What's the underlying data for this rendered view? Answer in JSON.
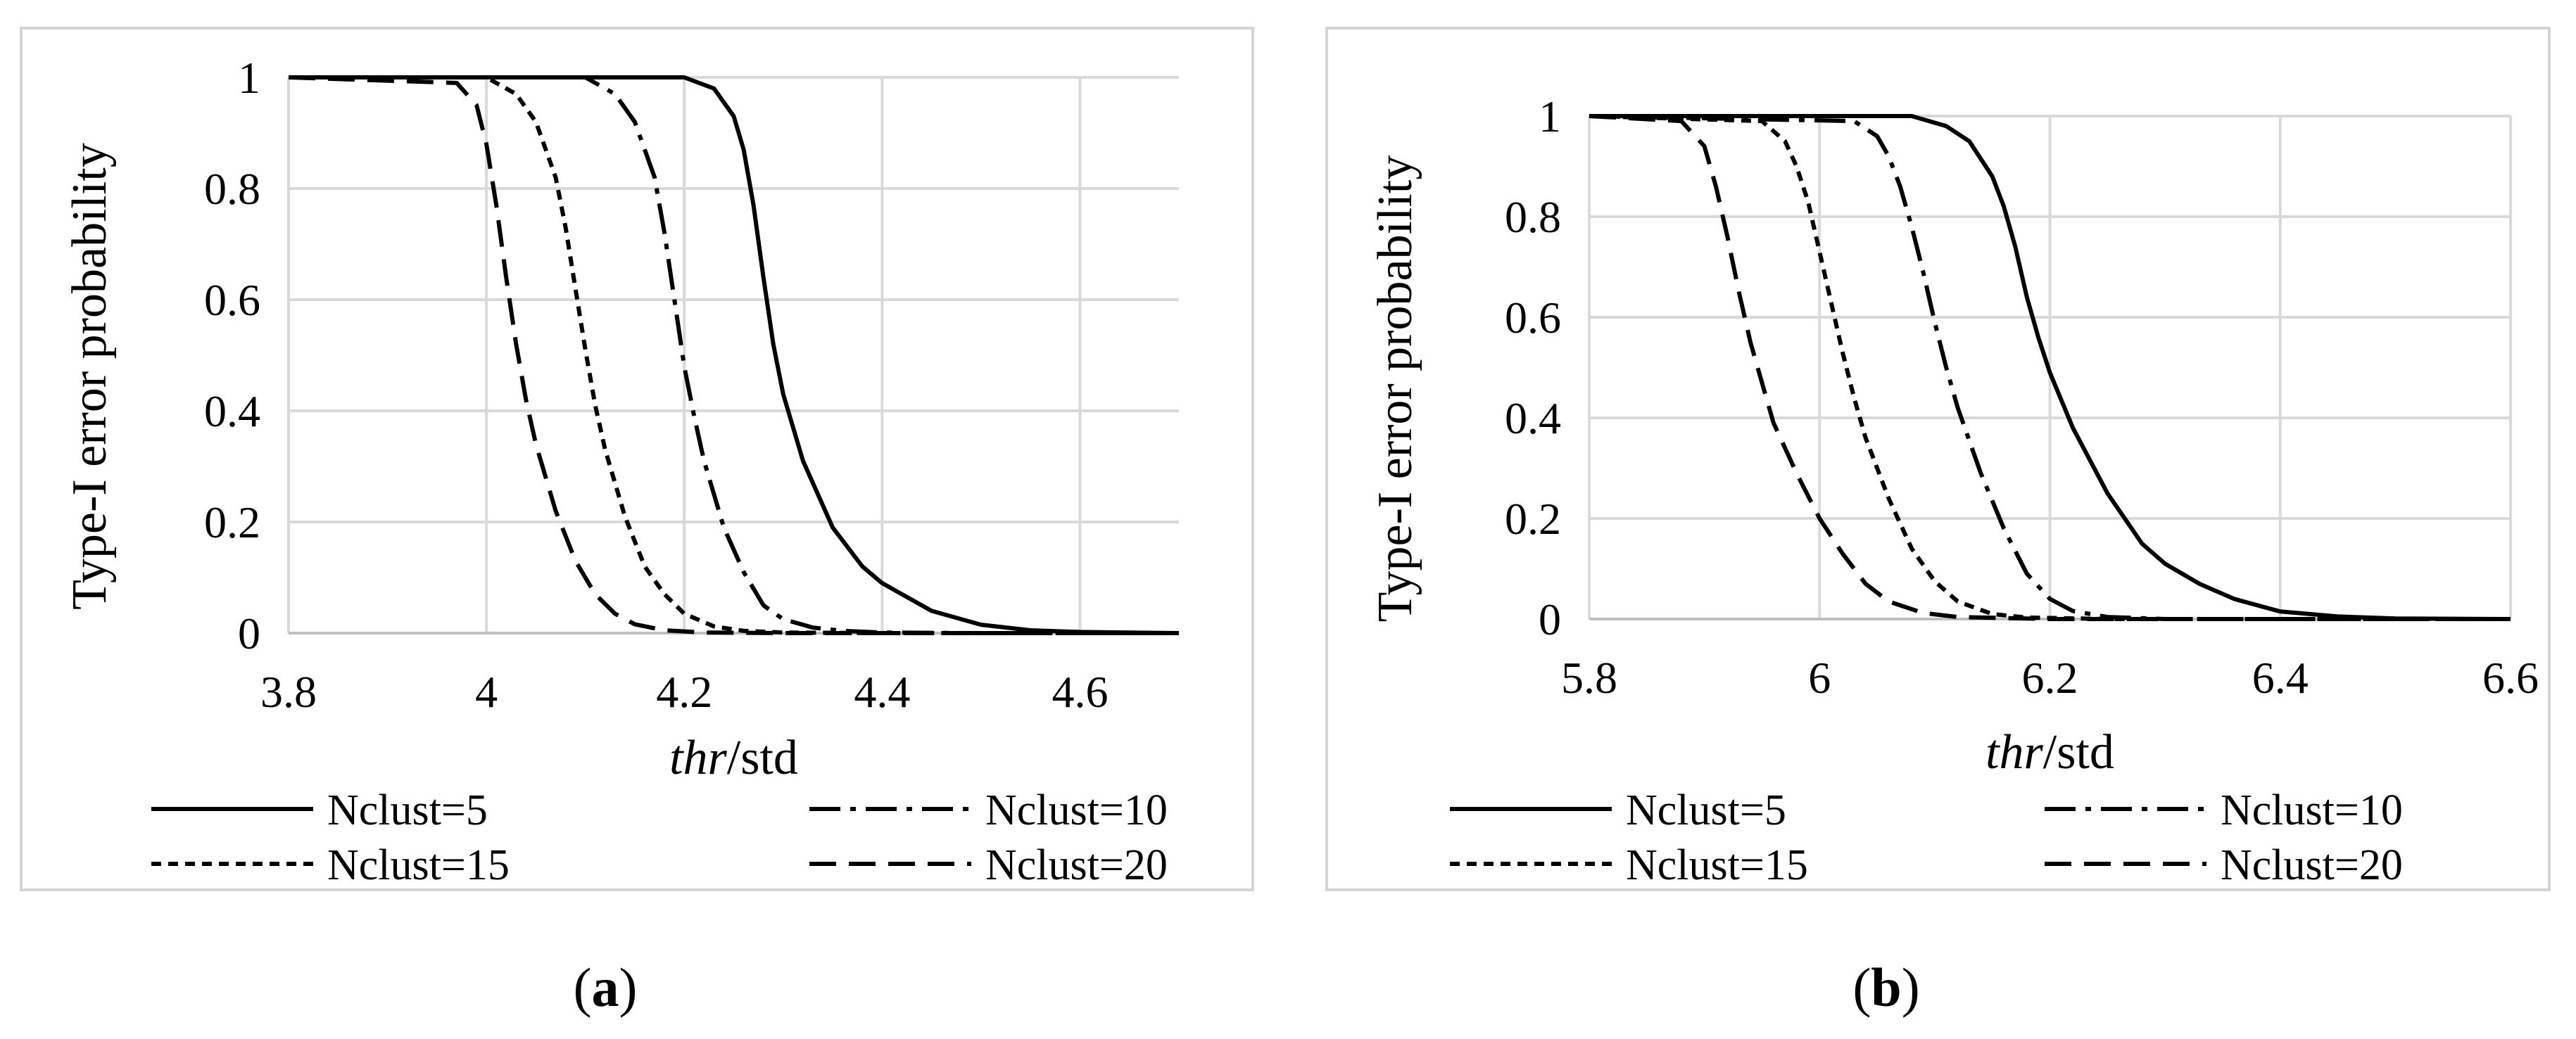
{
  "chart_data": [
    {
      "type": "line",
      "caption": "a",
      "xlabel_italic": "thr",
      "xlabel_rest": "/std",
      "ylabel": "Type-I  error probability",
      "xlim": [
        3.8,
        4.7
      ],
      "ylim": [
        0,
        1
      ],
      "x_ticks": [
        3.8,
        4.0,
        4.2,
        4.4,
        4.6
      ],
      "x_tick_labels": [
        "3.8",
        "4",
        "4.2",
        "4.4",
        "4.6"
      ],
      "y_ticks": [
        0,
        0.2,
        0.4,
        0.6,
        0.8,
        1
      ],
      "y_tick_labels": [
        "0",
        "0.2",
        "0.4",
        "0.6",
        "0.8",
        "1"
      ],
      "x_grid": [
        3.8,
        4.0,
        4.2,
        4.4,
        4.6
      ],
      "grid": true,
      "legend_position": "bottom",
      "series": [
        {
          "name": "Nclust=5",
          "dash": "solid",
          "x": [
            3.8,
            4.15,
            4.2,
            4.23,
            4.25,
            4.26,
            4.27,
            4.28,
            4.29,
            4.3,
            4.32,
            4.35,
            4.38,
            4.4,
            4.45,
            4.5,
            4.55,
            4.6,
            4.65,
            4.7
          ],
          "y": [
            1,
            1,
            1,
            0.98,
            0.93,
            0.87,
            0.77,
            0.64,
            0.52,
            0.43,
            0.31,
            0.19,
            0.12,
            0.09,
            0.04,
            0.015,
            0.005,
            0.002,
            0.001,
            0
          ]
        },
        {
          "name": "Nclust=10",
          "dash": "dashdot",
          "x": [
            3.8,
            4.1,
            4.13,
            4.15,
            4.17,
            4.18,
            4.19,
            4.2,
            4.21,
            4.22,
            4.24,
            4.26,
            4.28,
            4.3,
            4.33,
            4.36,
            4.4,
            4.5,
            4.7
          ],
          "y": [
            1,
            1,
            0.97,
            0.92,
            0.82,
            0.72,
            0.6,
            0.48,
            0.39,
            0.31,
            0.19,
            0.11,
            0.05,
            0.025,
            0.01,
            0.004,
            0.001,
            0,
            0
          ]
        },
        {
          "name": "Nclust=15",
          "dash": "shortdash",
          "x": [
            3.8,
            4.0,
            4.03,
            4.05,
            4.07,
            4.08,
            4.09,
            4.1,
            4.11,
            4.12,
            4.14,
            4.16,
            4.18,
            4.2,
            4.23,
            4.26,
            4.3,
            4.4,
            4.7
          ],
          "y": [
            1,
            1,
            0.97,
            0.92,
            0.82,
            0.73,
            0.62,
            0.51,
            0.41,
            0.33,
            0.21,
            0.12,
            0.07,
            0.035,
            0.012,
            0.004,
            0.001,
            0,
            0
          ]
        },
        {
          "name": "Nclust=20",
          "dash": "dash",
          "x": [
            3.8,
            3.97,
            3.99,
            4.0,
            4.01,
            4.02,
            4.03,
            4.04,
            4.05,
            4.07,
            4.09,
            4.11,
            4.13,
            4.15,
            4.18,
            4.22,
            4.3,
            4.7
          ],
          "y": [
            1,
            0.99,
            0.95,
            0.88,
            0.77,
            0.64,
            0.52,
            0.42,
            0.34,
            0.22,
            0.13,
            0.07,
            0.035,
            0.016,
            0.005,
            0.001,
            0,
            0
          ]
        }
      ]
    },
    {
      "type": "line",
      "caption": "b",
      "xlabel_italic": "thr",
      "xlabel_rest": "/std",
      "ylabel": "Type-I  error probability",
      "xlim": [
        5.8,
        6.6
      ],
      "ylim": [
        0,
        1
      ],
      "x_ticks": [
        5.8,
        6.0,
        6.2,
        6.4,
        6.6
      ],
      "x_tick_labels": [
        "5.8",
        "6",
        "6.2",
        "6.4",
        "6.6"
      ],
      "y_ticks": [
        0,
        0.2,
        0.4,
        0.6,
        0.8,
        1
      ],
      "y_tick_labels": [
        "0",
        "0.2",
        "0.4",
        "0.6",
        "0.8",
        "1"
      ],
      "x_grid": [
        5.8,
        6.0,
        6.2,
        6.4,
        6.6
      ],
      "grid": true,
      "legend_position": "bottom",
      "series": [
        {
          "name": "Nclust=5",
          "dash": "solid",
          "x": [
            5.8,
            6.08,
            6.11,
            6.13,
            6.15,
            6.16,
            6.17,
            6.18,
            6.19,
            6.2,
            6.22,
            6.25,
            6.28,
            6.3,
            6.33,
            6.36,
            6.4,
            6.45,
            6.5,
            6.6
          ],
          "y": [
            1,
            1,
            0.98,
            0.95,
            0.88,
            0.82,
            0.74,
            0.64,
            0.56,
            0.49,
            0.38,
            0.25,
            0.15,
            0.11,
            0.07,
            0.04,
            0.015,
            0.005,
            0.001,
            0
          ]
        },
        {
          "name": "Nclust=10",
          "dash": "dashdot",
          "x": [
            5.8,
            6.03,
            6.05,
            6.06,
            6.07,
            6.08,
            6.09,
            6.1,
            6.11,
            6.12,
            6.14,
            6.16,
            6.18,
            6.2,
            6.22,
            6.25,
            6.3,
            6.6
          ],
          "y": [
            1,
            0.99,
            0.96,
            0.92,
            0.86,
            0.78,
            0.69,
            0.59,
            0.5,
            0.42,
            0.29,
            0.18,
            0.09,
            0.04,
            0.016,
            0.004,
            0,
            0
          ]
        },
        {
          "name": "Nclust=15",
          "dash": "shortdash",
          "x": [
            5.8,
            5.95,
            5.97,
            5.98,
            5.99,
            6.0,
            6.01,
            6.02,
            6.03,
            6.04,
            6.06,
            6.08,
            6.1,
            6.12,
            6.15,
            6.18,
            6.25,
            6.6
          ],
          "y": [
            1,
            0.99,
            0.95,
            0.9,
            0.83,
            0.73,
            0.63,
            0.53,
            0.44,
            0.36,
            0.24,
            0.14,
            0.075,
            0.035,
            0.01,
            0.003,
            0,
            0
          ]
        },
        {
          "name": "Nclust=20",
          "dash": "dash",
          "x": [
            5.8,
            5.88,
            5.9,
            5.91,
            5.92,
            5.93,
            5.94,
            5.95,
            5.96,
            5.98,
            6.0,
            6.02,
            6.04,
            6.06,
            6.09,
            6.12,
            6.2,
            6.6
          ],
          "y": [
            1,
            0.99,
            0.94,
            0.86,
            0.76,
            0.65,
            0.55,
            0.47,
            0.39,
            0.29,
            0.2,
            0.13,
            0.07,
            0.035,
            0.012,
            0.004,
            0,
            0
          ]
        }
      ]
    }
  ]
}
